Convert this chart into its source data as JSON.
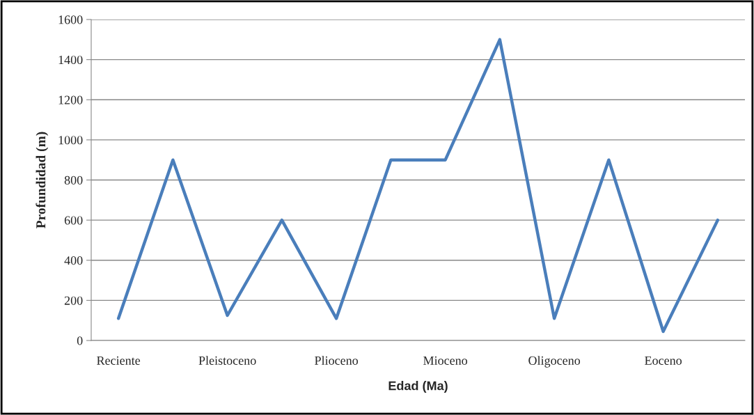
{
  "chart_data": {
    "type": "line",
    "xlabel": "Edad (Ma)",
    "ylabel": "Profundidad (m)",
    "categories": [
      "Reciente",
      null,
      "Pleistoceno",
      null,
      "Plioceno",
      null,
      "Mioceno",
      null,
      "Oligoceno",
      null,
      "Eoceno",
      null
    ],
    "series": [
      {
        "color": "#4a7ebb",
        "values": [
          110,
          900,
          125,
          600,
          110,
          900,
          900,
          1500,
          110,
          900,
          45,
          600
        ]
      }
    ],
    "ylim": [
      0,
      1600
    ],
    "yticks": [
      0,
      200,
      400,
      600,
      800,
      1000,
      1200,
      1400,
      1600
    ],
    "grid": "y",
    "legend": false,
    "marker": "none",
    "line_style": "solid"
  }
}
